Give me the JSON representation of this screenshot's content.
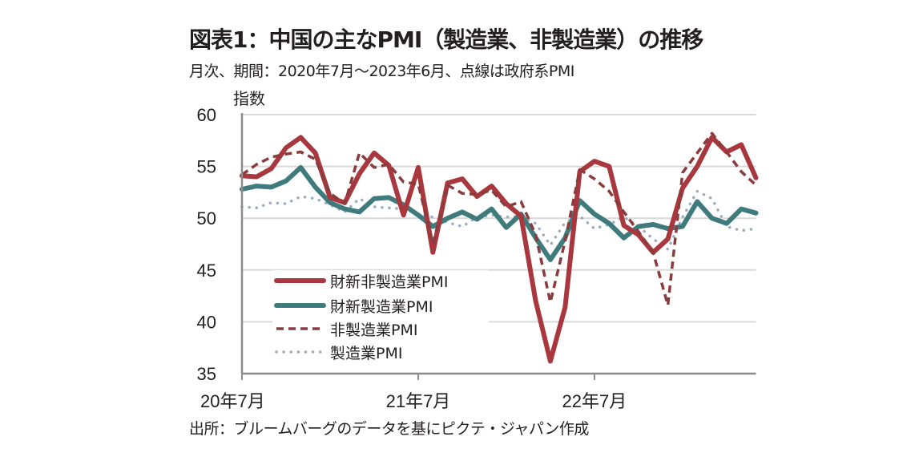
{
  "title": "図表1：中国の主なPMI（製造業、非製造業）の推移",
  "subtitle": "月次、期間：2020年7月～2023年6月、点線は政府系PMI",
  "source": "出所：ブルームバーグのデータを基にピクテ・ジャパン作成",
  "chart_data": {
    "type": "line",
    "title": "図表1：中国の主なPMI（製造業、非製造業）の推移",
    "ylabel": "指数",
    "xlabel": "",
    "ylim": [
      35,
      60
    ],
    "yticks": [
      "35",
      "40",
      "45",
      "50",
      "55",
      "60"
    ],
    "ytick_values": [
      35,
      40,
      45,
      50,
      55,
      60
    ],
    "xtick_labels": [
      "20年7月",
      "21年7月",
      "22年7月"
    ],
    "xtick_indices": [
      0,
      12,
      24
    ],
    "grid": true,
    "legend_position": "bottom-left",
    "x": [
      "2020-07",
      "2020-08",
      "2020-09",
      "2020-10",
      "2020-11",
      "2020-12",
      "2021-01",
      "2021-02",
      "2021-03",
      "2021-04",
      "2021-05",
      "2021-06",
      "2021-07",
      "2021-08",
      "2021-09",
      "2021-10",
      "2021-11",
      "2021-12",
      "2022-01",
      "2022-02",
      "2022-03",
      "2022-04",
      "2022-05",
      "2022-06",
      "2022-07",
      "2022-08",
      "2022-09",
      "2022-10",
      "2022-11",
      "2022-12",
      "2023-01",
      "2023-02",
      "2023-03",
      "2023-04",
      "2023-05",
      "2023-06"
    ],
    "series": [
      {
        "name": "財新非製造業PMI",
        "color": "#a8383e",
        "style": "solid-thick",
        "values": [
          54.1,
          54.0,
          54.8,
          56.8,
          57.8,
          56.3,
          52.0,
          51.5,
          54.3,
          56.3,
          55.1,
          50.3,
          54.9,
          46.7,
          53.4,
          53.8,
          52.1,
          53.1,
          51.4,
          50.2,
          42.0,
          36.2,
          41.4,
          54.5,
          55.5,
          55.0,
          49.3,
          48.4,
          46.7,
          48.0,
          52.9,
          55.0,
          57.8,
          56.4,
          57.1,
          53.9
        ]
      },
      {
        "name": "財新製造業PMI",
        "color": "#3f7a7c",
        "style": "solid-thick",
        "values": [
          52.8,
          53.1,
          53.0,
          53.6,
          54.9,
          53.0,
          51.5,
          50.9,
          50.6,
          51.9,
          52.0,
          51.3,
          50.3,
          49.2,
          50.0,
          50.6,
          49.9,
          50.9,
          49.1,
          50.4,
          48.1,
          46.0,
          48.1,
          51.7,
          50.4,
          49.5,
          48.1,
          49.2,
          49.4,
          49.0,
          49.2,
          51.6,
          50.0,
          49.5,
          50.9,
          50.5
        ]
      },
      {
        "name": "非製造業PMI",
        "color": "#8a3c3c",
        "style": "dashed",
        "values": [
          54.2,
          55.2,
          55.9,
          56.2,
          56.4,
          55.7,
          52.4,
          51.4,
          56.3,
          54.9,
          55.2,
          53.5,
          53.3,
          47.5,
          53.2,
          52.4,
          52.3,
          52.7,
          51.1,
          51.6,
          48.4,
          41.9,
          47.8,
          54.7,
          53.8,
          52.6,
          50.6,
          48.7,
          46.7,
          41.6,
          54.4,
          56.3,
          58.2,
          56.4,
          54.5,
          53.2
        ]
      },
      {
        "name": "製造業PMI",
        "color": "#9eabc0",
        "style": "dotted",
        "values": [
          51.1,
          51.0,
          51.5,
          51.4,
          52.1,
          51.9,
          51.3,
          50.6,
          51.9,
          51.1,
          51.0,
          50.9,
          50.4,
          50.1,
          49.6,
          49.2,
          50.1,
          50.3,
          50.1,
          50.2,
          49.5,
          47.4,
          49.6,
          50.2,
          49.0,
          49.4,
          50.1,
          49.2,
          48.0,
          47.0,
          50.1,
          52.6,
          51.9,
          49.2,
          48.8,
          49.0
        ]
      }
    ]
  }
}
